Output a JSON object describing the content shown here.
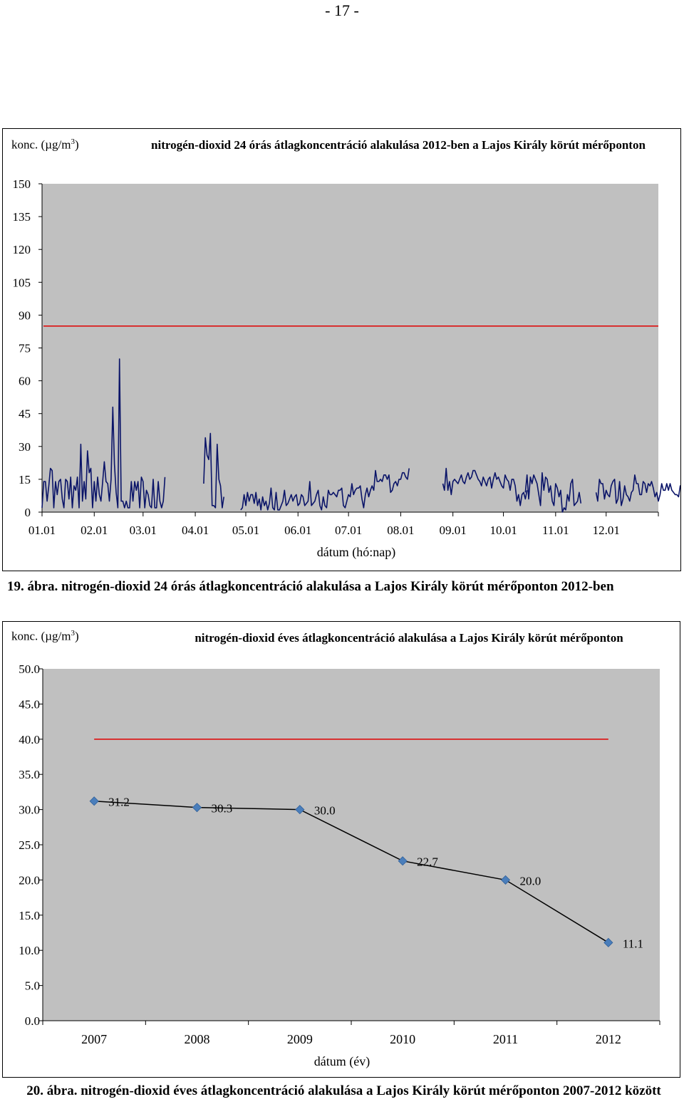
{
  "page": {
    "number": "- 17 -"
  },
  "chart1": {
    "ylabel": "konc. (µg/m",
    "ylabel_sup": "3",
    "ylabel_end": ")",
    "title": "nitrogén-dioxid 24 órás átlagkoncentráció alakulása 2012-ben a Lajos Király körút mérőponton",
    "xlabel": "dátum (hó:nap)",
    "caption_num": "19. ábra.",
    "caption_text": " nitrogén-dioxid 24 órás átlagkoncentráció alakulása a Lajos Király körút mérőponton 2012-ben"
  },
  "chart2": {
    "ylabel": "konc. (µg/m",
    "ylabel_sup": "3",
    "ylabel_end": ")",
    "title": "nitrogén-dioxid éves átlagkoncentráció alakulása a Lajos Király körút mérőponton",
    "xlabel": "dátum (év)",
    "caption_num": "20. ábra.",
    "caption_text": " nitrogén-dioxid éves átlagkoncentráció alakulása a Lajos Király körút mérőponton 2007-2012 között"
  },
  "chart_data": [
    {
      "type": "line",
      "ylim": [
        0,
        150
      ],
      "yticks": [
        0,
        15,
        30,
        45,
        60,
        75,
        90,
        105,
        120,
        135,
        150
      ],
      "xticks": [
        "01.01",
        "02.01",
        "03.01",
        "04.01",
        "05.01",
        "06.01",
        "07.01",
        "08.01",
        "09.01",
        "10.01",
        "11.01",
        "12.01"
      ],
      "limit_value": 85,
      "colors": {
        "series": "#0a1468",
        "limit": "#e00000",
        "plot_bg": "#c0c0c0"
      },
      "segments": [
        {
          "start_day": 1,
          "values": [
            2,
            14,
            14,
            5,
            12,
            20,
            19,
            2,
            14,
            8,
            14,
            15,
            6,
            2,
            15,
            14,
            6,
            16,
            2,
            12,
            10,
            16,
            2,
            31,
            5,
            14,
            6,
            28,
            18,
            20,
            2,
            14,
            5,
            16,
            8,
            5,
            14,
            23,
            14,
            13,
            5,
            15,
            48,
            22,
            9,
            2,
            70,
            5,
            5,
            2,
            5,
            2,
            2,
            14,
            5,
            14,
            10,
            14,
            2,
            16,
            14,
            2,
            10,
            8,
            3,
            2,
            15,
            2,
            2,
            14,
            5,
            2,
            5,
            16
          ]
        },
        {
          "start_day": 97,
          "values": [
            13,
            34,
            26,
            24,
            36,
            3,
            3,
            2,
            31,
            15,
            12,
            2,
            7
          ]
        },
        {
          "start_day": 119,
          "values": [
            1,
            2,
            8,
            3,
            9,
            5,
            8,
            8,
            4,
            9,
            3,
            6,
            1,
            7,
            3,
            5,
            1,
            4,
            11,
            2,
            1,
            9,
            1,
            1,
            3,
            5,
            10,
            3,
            4,
            6,
            8,
            5,
            7,
            8,
            3,
            4,
            8,
            7,
            3,
            4,
            5,
            14,
            3,
            4,
            5,
            8,
            10,
            3,
            1,
            7,
            3,
            2,
            10,
            8,
            8,
            9,
            8,
            7,
            10,
            10,
            11,
            3,
            2,
            5,
            8,
            7,
            13,
            8,
            10,
            11,
            11,
            12,
            6,
            2,
            8,
            11,
            7,
            10,
            12,
            10,
            19,
            14,
            14,
            15,
            14,
            17,
            17,
            15,
            17,
            9,
            10,
            13,
            14,
            12,
            15,
            15,
            18,
            18,
            16,
            15,
            20
          ]
        },
        {
          "start_day": 239,
          "values": [
            13,
            10,
            20,
            10,
            14,
            8,
            14,
            15,
            14,
            13,
            15,
            17,
            14,
            13,
            16,
            18,
            15,
            16,
            19,
            19,
            17,
            15,
            14,
            12,
            16,
            14,
            12,
            15,
            16,
            11,
            15,
            18,
            15,
            16,
            14,
            12,
            11,
            17,
            15,
            14,
            10,
            15,
            15,
            12,
            5,
            8,
            3,
            8,
            9,
            6,
            10
          ]
        },
        {
          "start_day": 288,
          "values": [
            9,
            17,
            6,
            16,
            13,
            17,
            15,
            13,
            8,
            3,
            18,
            10,
            16,
            15,
            9,
            12,
            5,
            3,
            13,
            11,
            7,
            10,
            0,
            2,
            1,
            8,
            5,
            13,
            15,
            3,
            4,
            5,
            9,
            4
          ]
        },
        {
          "start_day": 330,
          "values": [
            9,
            5,
            15,
            13,
            13,
            6,
            10,
            8,
            7,
            12,
            14,
            15,
            4,
            6,
            14,
            3,
            6,
            12,
            8,
            7,
            5,
            9,
            10,
            17,
            13,
            13,
            8,
            8,
            14,
            13,
            9,
            13,
            12,
            14,
            11,
            7,
            9,
            5,
            8,
            13,
            10,
            10,
            13,
            10,
            13,
            10,
            9,
            8,
            8,
            7,
            12,
            9,
            5,
            5,
            9,
            12,
            7,
            7,
            9,
            8,
            9,
            10,
            6,
            3,
            7,
            6,
            7,
            9,
            5,
            11,
            9,
            10,
            8,
            6,
            2,
            5,
            6,
            3,
            7,
            3,
            6,
            7
          ]
        }
      ]
    },
    {
      "type": "line",
      "categories": [
        "2007",
        "2008",
        "2009",
        "2010",
        "2011",
        "2012"
      ],
      "values": [
        31.2,
        30.3,
        30.0,
        22.7,
        20.0,
        11.1
      ],
      "value_labels": [
        "31.2",
        "30.3",
        "30.0",
        "22.7",
        "20.0",
        "11.1"
      ],
      "ylim": [
        0,
        50
      ],
      "yticks": [
        "0.0",
        "5.0",
        "10.0",
        "15.0",
        "20.0",
        "25.0",
        "30.0",
        "35.0",
        "40.0",
        "45.0",
        "50.0"
      ],
      "limit_value": 40,
      "colors": {
        "series": "#000000",
        "marker": "#4a7ebb",
        "limit": "#e00000",
        "plot_bg": "#c0c0c0"
      }
    }
  ]
}
